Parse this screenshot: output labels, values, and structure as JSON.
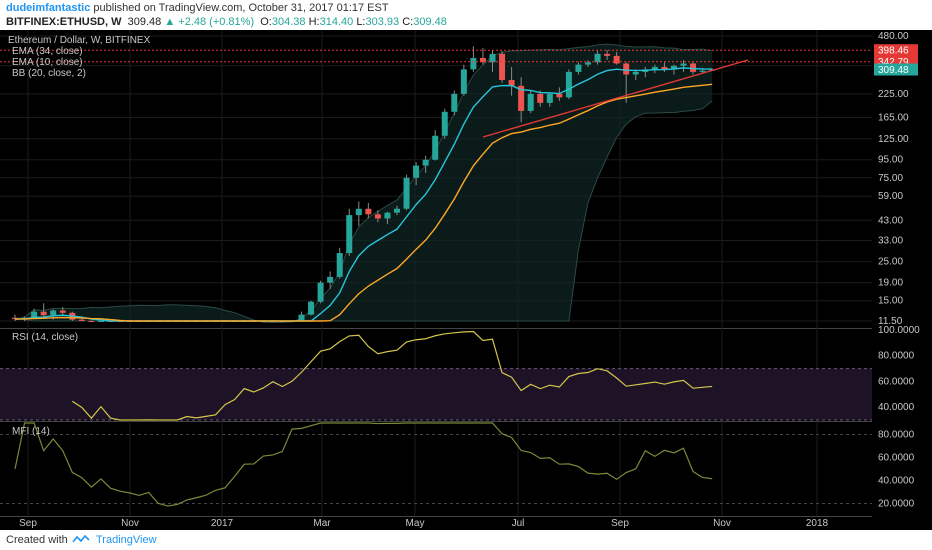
{
  "header": {
    "publisher": "dudeimfantastic",
    "published_text": "published on TradingView.com, October 31, 2017 01:17 EST",
    "symbol": "BITFINEX:ETHUSD, W",
    "last": "309.48",
    "change": "▲ +2.48 (+0.81%)",
    "o_label": "O:",
    "o_value": "304.38",
    "h_label": "H:",
    "h_value": "314.40",
    "l_label": "L:",
    "l_value": "303.93",
    "c_label": "C:",
    "c_value": "309.48"
  },
  "price_pane": {
    "title": "Ethereum / Dollar, W, BITFINEX",
    "indicators": [
      "EMA (34, close)",
      "EMA (10, close)",
      "BB (20, close, 2)"
    ],
    "price_labels": [
      "398.46",
      "342.79",
      "309.48"
    ],
    "price_label_colors": [
      "#e53935",
      "#e53935",
      "#26a69a"
    ]
  },
  "rsi_pane": {
    "title": "RSI (14, close)"
  },
  "mfi_pane": {
    "title": "MFI (14)"
  },
  "footer": {
    "created_with": "Created with",
    "brand": "TradingView"
  },
  "colors": {
    "up": "#26a69a",
    "down": "#ef5350",
    "ema10": "#26c6da",
    "ema34": "#ffa726",
    "rsi": "#d4c64a",
    "mfi": "#7a8a3a",
    "resistance": "#e53935",
    "trend": "#e53935"
  },
  "chart_data": [
    {
      "type": "candlestick",
      "title": "Ethereum / Dollar, W, BITFINEX",
      "y_scale": "log",
      "yticks": [
        "480.00",
        "325.00",
        "225.00",
        "165.00",
        "125.00",
        "95.00",
        "75.00",
        "59.00",
        "43.00",
        "33.00",
        "25.00",
        "19.00",
        "15.00",
        "11.50"
      ],
      "xticks": [
        "Sep",
        "Nov",
        "2017",
        "Mar",
        "May",
        "Jul",
        "Sep",
        "Nov",
        "2018"
      ],
      "ohlc": [
        [
          12,
          12.5,
          11.2,
          11.8
        ],
        [
          11.8,
          12.2,
          11.4,
          12
        ],
        [
          12,
          13.5,
          11.8,
          13
        ],
        [
          13,
          14.5,
          12.2,
          12.4
        ],
        [
          12.4,
          13.4,
          11.7,
          13.2
        ],
        [
          13.2,
          13.8,
          12.5,
          12.8
        ],
        [
          12.8,
          13,
          11.5,
          11.7
        ],
        [
          11.7,
          12,
          11,
          11.3
        ],
        [
          11.3,
          11.6,
          10.2,
          10.4
        ],
        [
          10.4,
          11.4,
          10,
          11
        ],
        [
          11,
          11.2,
          9.5,
          9.8
        ],
        [
          9.8,
          10.3,
          8.8,
          9.3
        ],
        [
          9.3,
          9.8,
          8.5,
          9
        ],
        [
          9,
          9.5,
          8.2,
          8.5
        ],
        [
          8.5,
          9.2,
          8,
          8.9
        ],
        [
          8.9,
          9.4,
          8,
          8.3
        ],
        [
          8.3,
          8.6,
          6.8,
          7.2
        ],
        [
          7.2,
          8,
          6.9,
          7.8
        ],
        [
          7.8,
          8.3,
          7.4,
          8.1
        ],
        [
          8.1,
          8.5,
          7.6,
          7.9
        ],
        [
          7.9,
          8.2,
          7.5,
          8
        ],
        [
          8,
          8.4,
          7.6,
          8.1
        ],
        [
          8.1,
          9,
          7.9,
          8.8
        ],
        [
          8.8,
          9.5,
          8.4,
          9.2
        ],
        [
          9.2,
          10.5,
          8.9,
          10.2
        ],
        [
          10.2,
          10.6,
          9.5,
          9.9
        ],
        [
          9.9,
          10.5,
          9.6,
          10.3
        ],
        [
          10.3,
          11.4,
          10.1,
          11
        ],
        [
          11,
          11.2,
          10.2,
          10.6
        ],
        [
          10.6,
          11.5,
          10.4,
          11.2
        ],
        [
          11.2,
          13,
          11,
          12.5
        ],
        [
          12.5,
          15,
          12.4,
          14.8
        ],
        [
          14.8,
          19.5,
          14.5,
          19
        ],
        [
          19,
          22,
          17.5,
          20.5
        ],
        [
          20.5,
          30,
          20,
          28
        ],
        [
          28,
          50,
          27,
          46
        ],
        [
          46,
          55,
          40,
          50
        ],
        [
          50,
          54,
          44,
          46.5
        ],
        [
          46.5,
          49,
          42,
          44
        ],
        [
          44,
          48,
          41,
          47.5
        ],
        [
          47.5,
          52,
          46,
          50
        ],
        [
          50,
          78,
          49,
          75
        ],
        [
          75,
          92,
          68,
          88
        ],
        [
          88,
          100,
          80,
          95
        ],
        [
          95,
          140,
          94,
          130
        ],
        [
          130,
          185,
          125,
          178
        ],
        [
          178,
          235,
          170,
          225
        ],
        [
          225,
          330,
          220,
          310
        ],
        [
          310,
          420,
          300,
          360
        ],
        [
          360,
          410,
          330,
          340
        ],
        [
          340,
          400,
          300,
          380
        ],
        [
          380,
          395,
          260,
          270
        ],
        [
          270,
          320,
          220,
          250
        ],
        [
          250,
          280,
          155,
          180
        ],
        [
          180,
          235,
          175,
          225
        ],
        [
          225,
          235,
          190,
          200
        ],
        [
          200,
          230,
          190,
          225
        ],
        [
          225,
          245,
          205,
          215
        ],
        [
          215,
          310,
          210,
          300
        ],
        [
          300,
          340,
          290,
          330
        ],
        [
          330,
          350,
          320,
          340
        ],
        [
          340,
          395,
          330,
          380
        ],
        [
          380,
          400,
          350,
          370
        ],
        [
          370,
          390,
          330,
          335
        ],
        [
          335,
          340,
          200,
          290
        ],
        [
          290,
          310,
          270,
          300
        ],
        [
          300,
          320,
          280,
          310
        ],
        [
          310,
          330,
          295,
          320
        ],
        [
          320,
          340,
          300,
          310
        ],
        [
          310,
          330,
          290,
          325
        ],
        [
          325,
          350,
          300,
          335
        ],
        [
          335,
          340,
          290,
          300
        ],
        [
          300,
          315,
          295,
          305
        ],
        [
          304.38,
          314.4,
          303.93,
          309.48
        ]
      ]
    },
    {
      "type": "line",
      "title": "RSI (14, close)",
      "yticks": [
        "100.0000",
        "80.0000",
        "60.0000",
        "40.0000"
      ],
      "ylim": [
        30,
        100
      ]
    },
    {
      "type": "line",
      "title": "MFI (14)",
      "yticks": [
        "80.0000",
        "60.0000",
        "40.0000",
        "20.0000"
      ],
      "ylim": [
        10,
        90
      ]
    }
  ]
}
